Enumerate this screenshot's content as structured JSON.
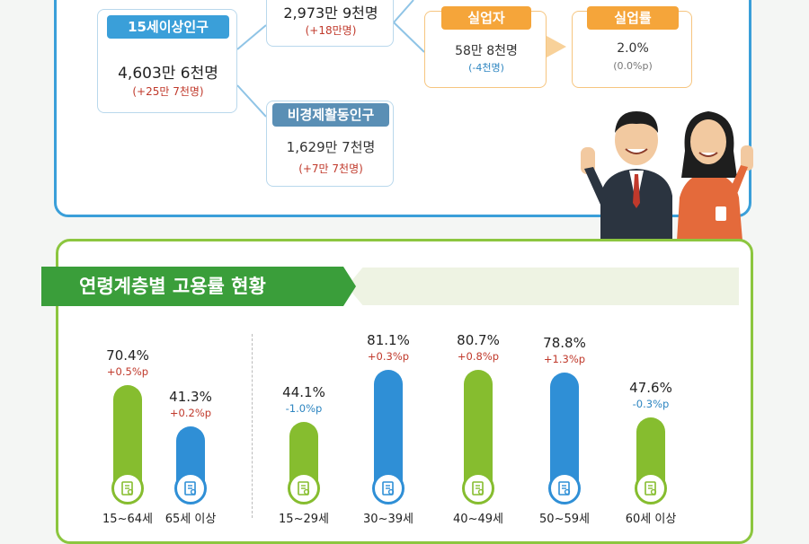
{
  "summary": {
    "pop15": {
      "tag": "15세이상인구",
      "value": "4,603만 6천명",
      "change": "(+25만 7천명)"
    },
    "labor": {
      "value": "2,973만 9천명",
      "change": "(+18만명)"
    },
    "unemployed": {
      "tag": "실업자",
      "value": "58만 8천명",
      "change": "(-4천명)"
    },
    "unemp_rate": {
      "tag": "실업률",
      "value": "2.0%",
      "change": "(0.0%p)"
    },
    "inactive": {
      "tag": "비경제활동인구",
      "value": "1,629만 7천명",
      "change": "(+7만 7천명)"
    }
  },
  "section_title": "연령계층별 고용률 현황",
  "colors": {
    "green": "#86bd2f",
    "blue": "#2f8fd6",
    "up": "#c0392b",
    "down": "#2e86c1"
  },
  "chart_data": {
    "type": "bar",
    "categories": [
      "15~64세",
      "65세 이상",
      "15~29세",
      "30~39세",
      "40~49세",
      "50~59세",
      "60세 이상"
    ],
    "values": [
      70.4,
      41.3,
      44.1,
      81.1,
      80.7,
      78.8,
      47.6
    ],
    "value_labels": [
      "70.4%",
      "41.3%",
      "44.1%",
      "81.1%",
      "80.7%",
      "78.8%",
      "47.6%"
    ],
    "changes": [
      "+0.5%p",
      "+0.2%p",
      "-1.0%p",
      "+0.3%p",
      "+0.8%p",
      "+1.3%p",
      "-0.3%p"
    ],
    "bar_colors": [
      "green",
      "blue",
      "green",
      "blue",
      "green",
      "blue",
      "green"
    ]
  }
}
